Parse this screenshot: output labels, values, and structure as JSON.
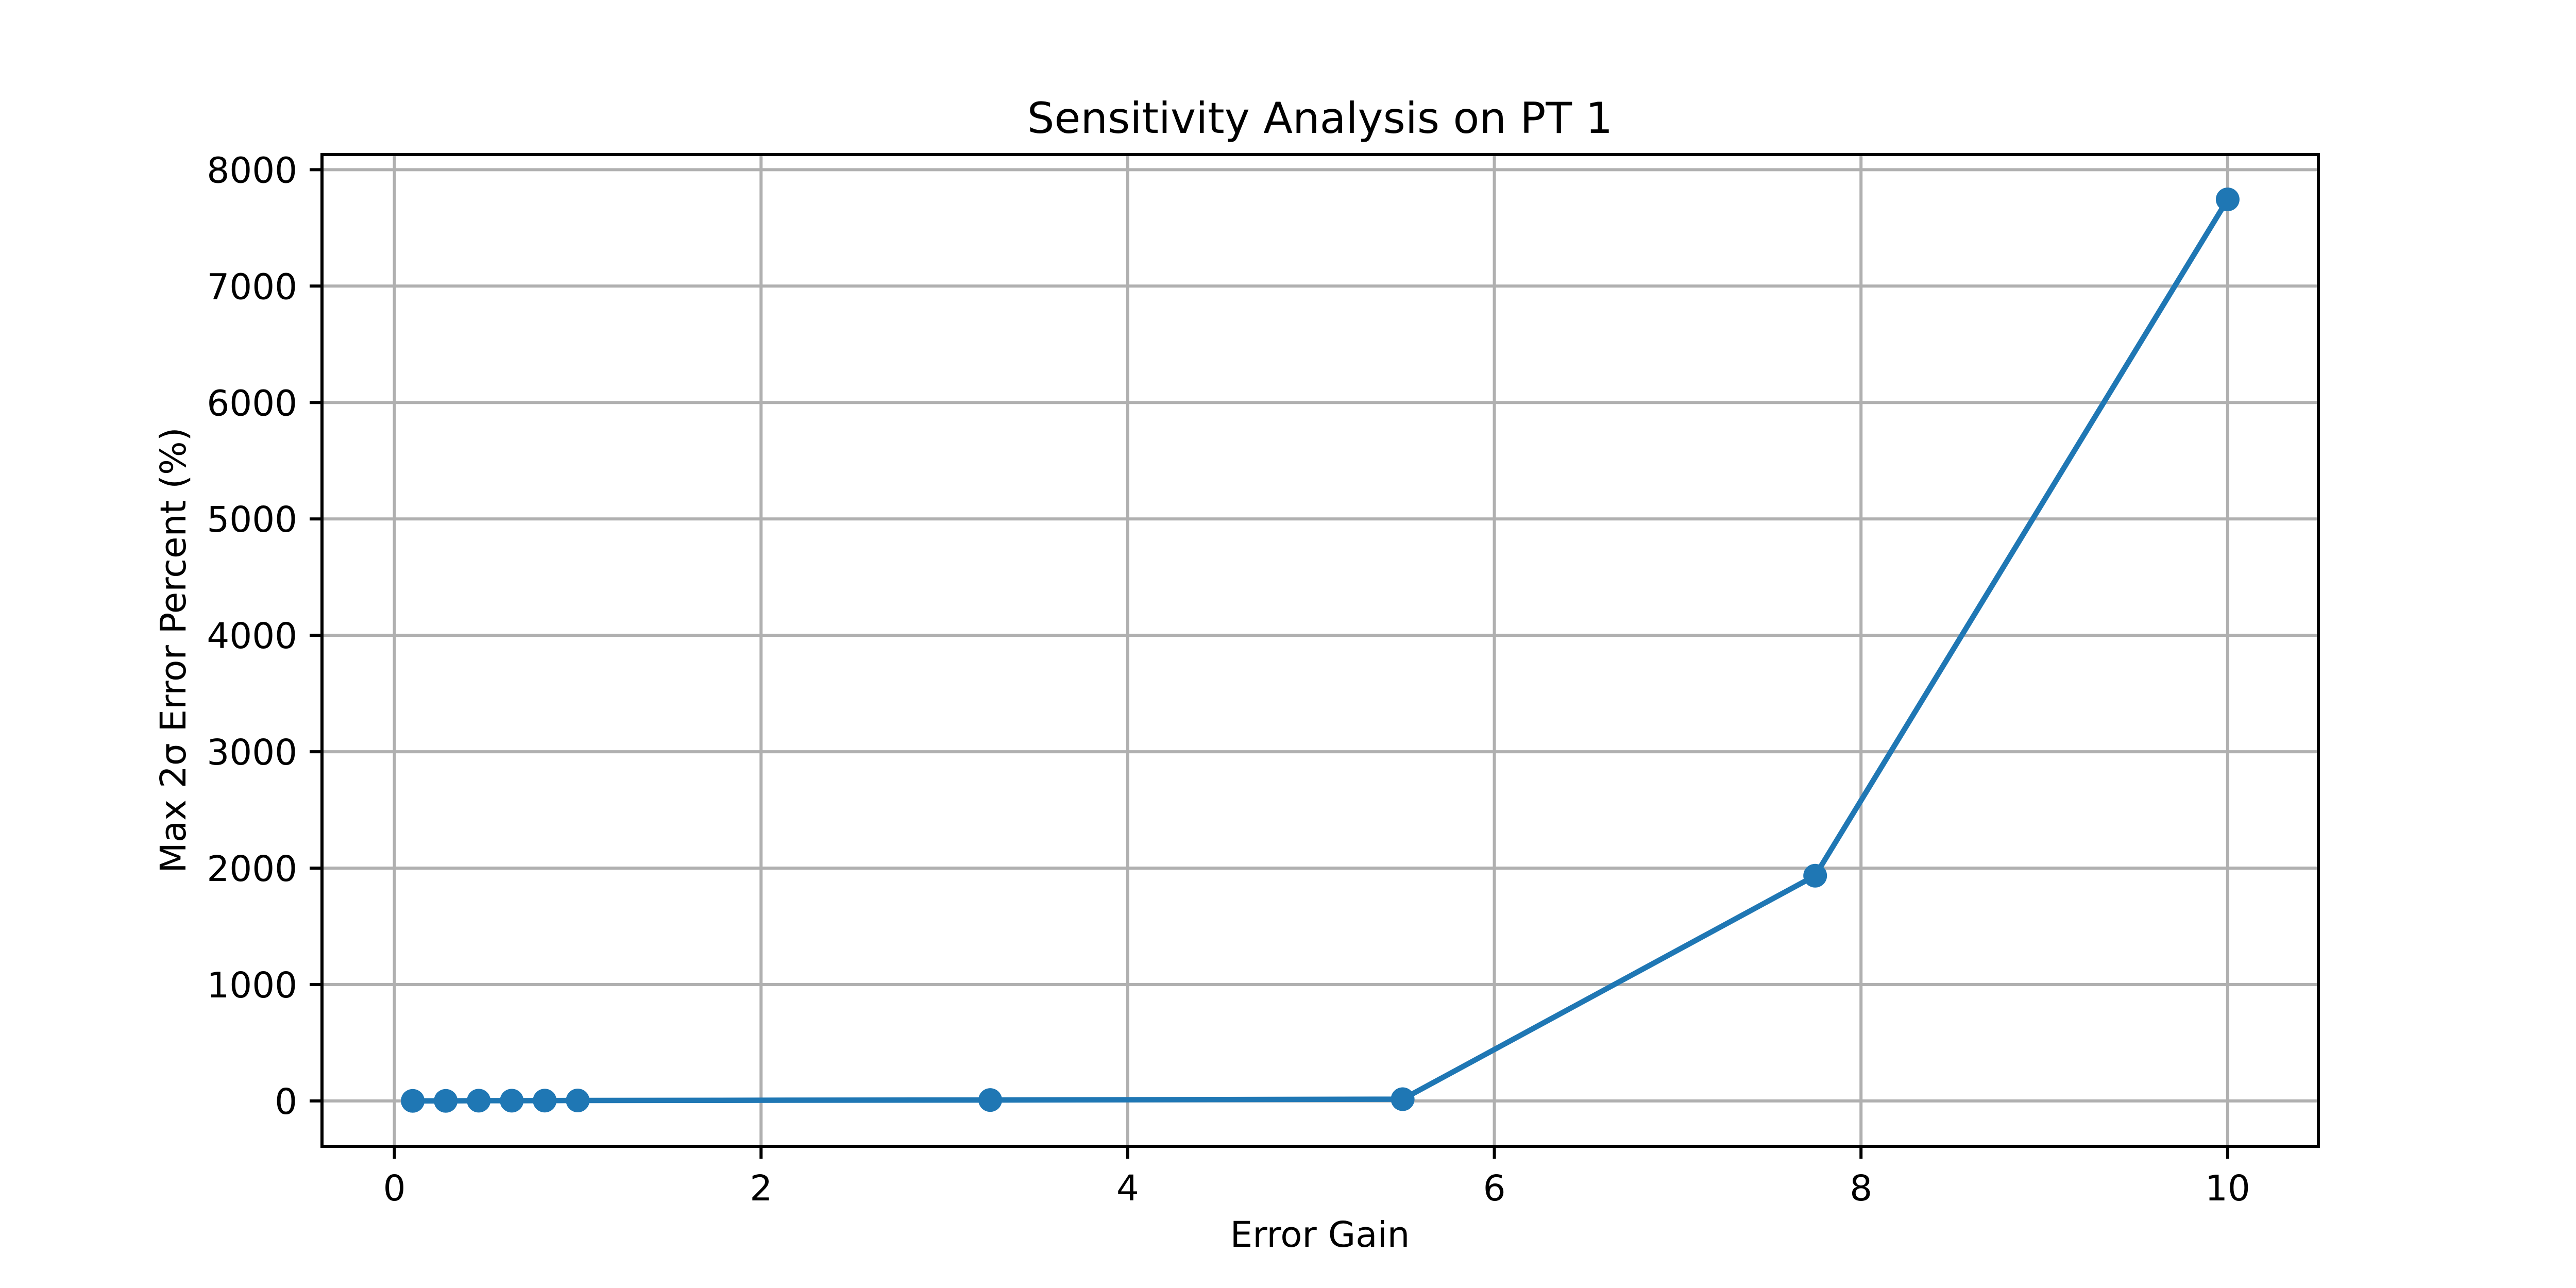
{
  "chart_data": {
    "type": "line",
    "title": "Sensitivity Analysis on PT 1",
    "xlabel": "Error Gain",
    "ylabel": "Max 2σ Error Percent (%)",
    "series": [
      {
        "name": "max 2σ error percent",
        "x": [
          0.1,
          0.28,
          0.46,
          0.64,
          0.82,
          1.0,
          3.25,
          5.5,
          7.75,
          10.0
        ],
        "y": [
          1,
          1,
          2,
          2,
          3,
          4,
          8,
          15,
          1935,
          7745
        ],
        "color": "#1f77b4",
        "marker": "circle"
      }
    ],
    "xlim": [
      -0.395,
      10.495
    ],
    "ylim": [
      -390,
      8130
    ],
    "xticks": [
      0,
      2,
      4,
      6,
      8,
      10
    ],
    "yticks": [
      0,
      1000,
      2000,
      3000,
      4000,
      5000,
      6000,
      7000,
      8000
    ],
    "grid": true,
    "legend": "none",
    "colors": {
      "line": "#1f77b4",
      "grid": "#b0b0b0",
      "spine": "#000000",
      "text": "#000000",
      "background": "#ffffff"
    }
  }
}
